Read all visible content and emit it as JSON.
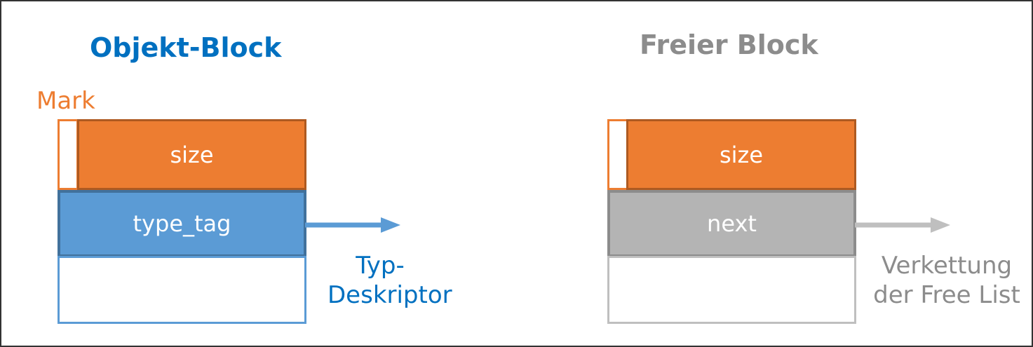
{
  "colors": {
    "orange": "#ED7D31",
    "orange_dark": "#AE5A21",
    "blue": "#5B9BD5",
    "blue_dark": "#41719C",
    "blue_text": "#0070C0",
    "gray": "#B4B4B4",
    "gray_dark": "#8C8C8C",
    "gray_text": "#8C8C8C"
  },
  "object_block": {
    "title": "Objekt-Block",
    "mark_label": "Mark",
    "size_label": "size",
    "type_tag_label": "type_tag",
    "arrow_target_line1": "Typ-",
    "arrow_target_line2": "Deskriptor"
  },
  "free_block": {
    "title": "Freier Block",
    "size_label": "size",
    "next_label": "next",
    "arrow_target_line1": "Verkettung",
    "arrow_target_line2": "der Free List"
  }
}
